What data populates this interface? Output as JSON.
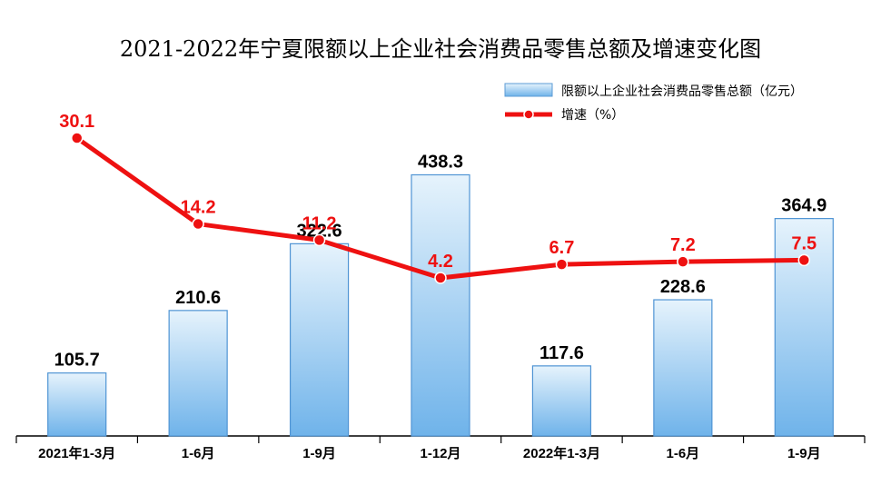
{
  "chart_data": {
    "type": "bar",
    "title": "2021-2022年宁夏限额以上企业社会消费品零售总额及增速变化图",
    "categories": [
      "2021年1-3月",
      "1-6月",
      "1-9月",
      "1-12月",
      "2022年1-3月",
      "1-6月",
      "1-9月"
    ],
    "series": [
      {
        "name": "限额以上企业社会消费品零售总额（亿元）",
        "type": "bar",
        "values": [
          105.7,
          210.6,
          322.6,
          438.3,
          117.6,
          228.6,
          364.9
        ],
        "color": "#7fbfef"
      },
      {
        "name": "增速（%）",
        "type": "line",
        "values": [
          30.1,
          14.2,
          11.2,
          4.2,
          6.7,
          7.2,
          7.5
        ],
        "color": "#ee1111"
      }
    ],
    "legend": "top-right",
    "grid": false
  }
}
